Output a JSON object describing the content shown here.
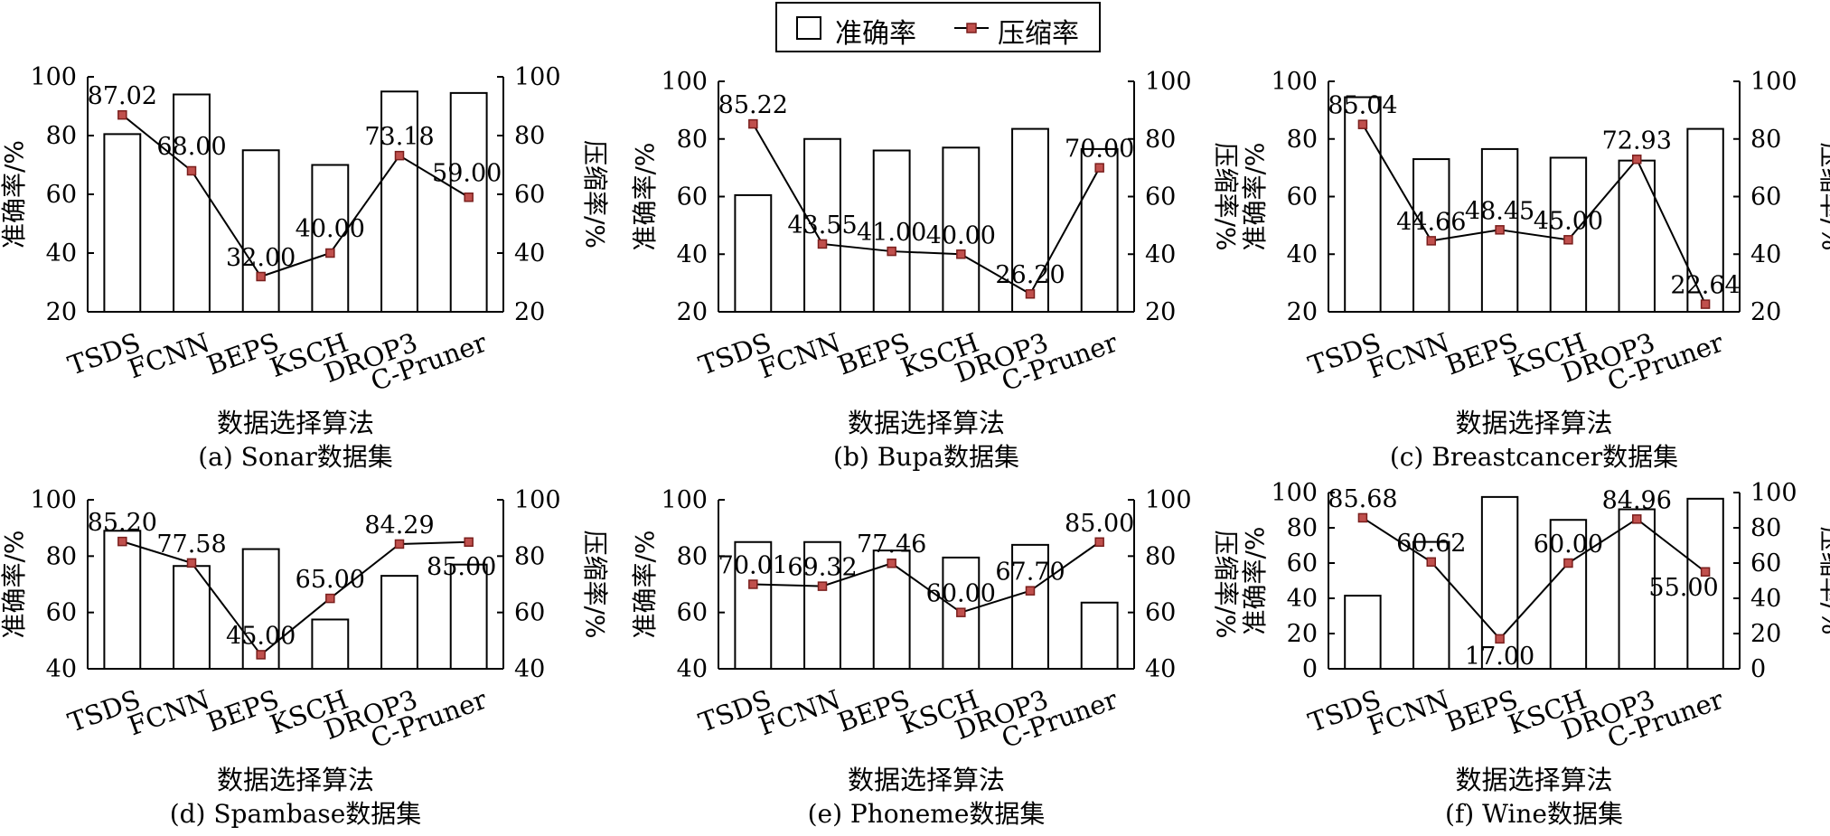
{
  "legend": {
    "accuracy_label": "准确率",
    "compression_label": "压缩率"
  },
  "colors": {
    "bar_fill": "#ffffff",
    "bar_stroke": "#000000",
    "line_color": "#000000",
    "marker_fill": "#c0504d",
    "marker_stroke": "#7a1f1d"
  },
  "chart_data": [
    {
      "type": "bar",
      "caption": "(a) Sonar数据集",
      "xlabel": "数据选择算法",
      "ylabel_left": "准确率/%",
      "ylabel_right": "压缩率/%",
      "ylim_left": [
        20,
        100
      ],
      "ylim_right": [
        20,
        100
      ],
      "yticks_left": [
        20,
        40,
        60,
        80,
        100
      ],
      "yticks_right": [
        20,
        40,
        60,
        80,
        100
      ],
      "categories": [
        "TSDS",
        "FCNN",
        "BEPS",
        "KSCH",
        "DROP3",
        "C-Pruner"
      ],
      "series": [
        {
          "name": "准确率",
          "kind": "bar",
          "values": [
            80.5,
            94,
            75,
            70,
            95,
            94.5
          ]
        },
        {
          "name": "压缩率",
          "kind": "line",
          "values": [
            87.02,
            68.0,
            32.0,
            40.0,
            73.18,
            59.0
          ],
          "labels": [
            "87.02",
            "68.00",
            "32.00",
            "40.00",
            "73.18",
            "59.00"
          ]
        }
      ]
    },
    {
      "type": "bar",
      "caption": "(b) Bupa数据集",
      "xlabel": "数据选择算法",
      "ylabel_left": "准确率/%",
      "ylabel_right": "压缩率/%",
      "ylim_left": [
        20,
        100
      ],
      "ylim_right": [
        20,
        100
      ],
      "yticks_left": [
        20,
        40,
        60,
        80,
        100
      ],
      "yticks_right": [
        20,
        40,
        60,
        80,
        100
      ],
      "categories": [
        "TSDS",
        "FCNN",
        "BEPS",
        "KSCH",
        "DROP3",
        "C-Pruner"
      ],
      "series": [
        {
          "name": "准确率",
          "kind": "bar",
          "values": [
            60.5,
            80,
            76,
            77,
            83.5,
            76.5
          ]
        },
        {
          "name": "压缩率",
          "kind": "line",
          "values": [
            85.22,
            43.55,
            41.0,
            40.0,
            26.2,
            70.0
          ],
          "labels": [
            "85.22",
            "43.55",
            "41.00",
            "40.00",
            "26.20",
            "70.00"
          ]
        }
      ]
    },
    {
      "type": "bar",
      "caption": "(c) Breastcancer数据集",
      "xlabel": "数据选择算法",
      "ylabel_left": "准确率/%",
      "ylabel_right": "压缩率/%",
      "ylim_left": [
        20,
        100
      ],
      "ylim_right": [
        20,
        100
      ],
      "yticks_left": [
        20,
        40,
        60,
        80,
        100
      ],
      "yticks_right": [
        20,
        40,
        60,
        80,
        100
      ],
      "categories": [
        "TSDS",
        "FCNN",
        "BEPS",
        "KSCH",
        "DROP3",
        "C-Pruner"
      ],
      "series": [
        {
          "name": "准确率",
          "kind": "bar",
          "values": [
            94.5,
            73,
            76.5,
            73.5,
            72.5,
            83.5
          ]
        },
        {
          "name": "压缩率",
          "kind": "line",
          "values": [
            85.04,
            44.66,
            48.45,
            45.0,
            72.93,
            22.64
          ],
          "labels": [
            "85.04",
            "44.66",
            "48.45",
            "45.00",
            "72.93",
            "22.64"
          ]
        }
      ]
    },
    {
      "type": "bar",
      "caption": "(d) Spambase数据集",
      "xlabel": "数据选择算法",
      "ylabel_left": "准确率/%",
      "ylabel_right": "压缩率/%",
      "ylim_left": [
        40,
        100
      ],
      "ylim_right": [
        40,
        100
      ],
      "yticks_left": [
        40,
        60,
        80,
        100
      ],
      "yticks_right": [
        40,
        60,
        80,
        100
      ],
      "categories": [
        "TSDS",
        "FCNN",
        "BEPS",
        "KSCH",
        "DROP3",
        "C-Pruner"
      ],
      "series": [
        {
          "name": "准确率",
          "kind": "bar",
          "values": [
            89,
            76.5,
            82.5,
            57.5,
            73,
            77
          ]
        },
        {
          "name": "压缩率",
          "kind": "line",
          "values": [
            85.2,
            77.58,
            45.0,
            65.0,
            84.29,
            85.0
          ],
          "labels": [
            "85.20",
            "77.58",
            "45.00",
            "65.00",
            "84.29",
            "85.00"
          ]
        }
      ]
    },
    {
      "type": "bar",
      "caption": "(e) Phoneme数据集",
      "xlabel": "数据选择算法",
      "ylabel_left": "准确率/%",
      "ylabel_right": "压缩率/%",
      "ylim_left": [
        40,
        100
      ],
      "ylim_right": [
        40,
        100
      ],
      "yticks_left": [
        40,
        60,
        80,
        100
      ],
      "yticks_right": [
        40,
        60,
        80,
        100
      ],
      "categories": [
        "TSDS",
        "FCNN",
        "BEPS",
        "KSCH",
        "DROP3",
        "C-Pruner"
      ],
      "series": [
        {
          "name": "准确率",
          "kind": "bar",
          "values": [
            85,
            85,
            82,
            79.5,
            84,
            63.5
          ]
        },
        {
          "name": "压缩率",
          "kind": "line",
          "values": [
            70.01,
            69.32,
            77.46,
            60.0,
            67.7,
            85.0
          ],
          "labels": [
            "70.01",
            "69.32",
            "77.46",
            "60.00",
            "67.70",
            "85.00"
          ]
        }
      ]
    },
    {
      "type": "bar",
      "caption": "(f) Wine数据集",
      "xlabel": "数据选择算法",
      "ylabel_left": "准确率/%",
      "ylabel_right": "压缩率/%",
      "ylim_left": [
        0,
        100
      ],
      "ylim_right": [
        0,
        100
      ],
      "yticks_left": [
        0,
        20,
        40,
        60,
        80,
        100
      ],
      "yticks_right": [
        0,
        20,
        40,
        60,
        80,
        100
      ],
      "categories": [
        "TSDS",
        "FCNN",
        "BEPS",
        "KSCH",
        "DROP3",
        "C-Pruner"
      ],
      "series": [
        {
          "name": "准确率",
          "kind": "bar",
          "values": [
            41.5,
            72,
            97.5,
            84.5,
            90.5,
            96.5
          ]
        },
        {
          "name": "压缩率",
          "kind": "line",
          "values": [
            85.68,
            60.62,
            17.0,
            60.0,
            84.96,
            55.0
          ],
          "labels": [
            "85.68",
            "60.62",
            "17.00",
            "60.00",
            "84.96",
            "55.00"
          ]
        }
      ]
    }
  ]
}
